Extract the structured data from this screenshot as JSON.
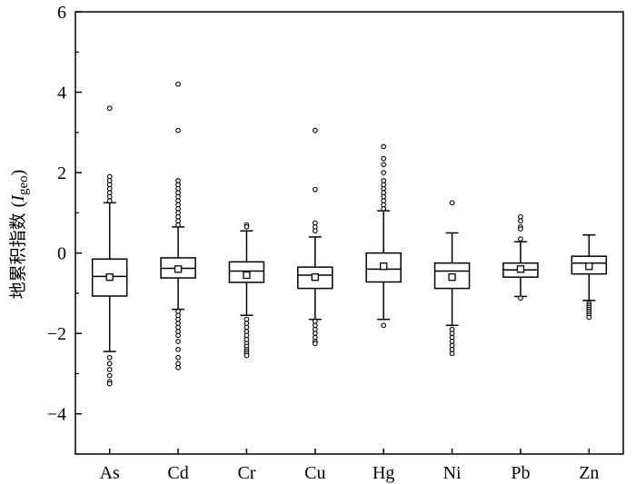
{
  "chart_data": {
    "type": "box",
    "title": "",
    "xlabel": "",
    "ylabel": {
      "text": "地累积指数",
      "symbol": "I",
      "subscript": "geo",
      "open_paren": "(",
      "close_paren": ")"
    },
    "ylim": [
      -5,
      6
    ],
    "yticks": [
      -4,
      -2,
      0,
      2,
      4,
      6
    ],
    "ytick_labels": [
      "−4",
      "−2",
      "0",
      "2",
      "4",
      "6"
    ],
    "grid": false,
    "categories": [
      "As",
      "Cd",
      "Cr",
      "Cu",
      "Hg",
      "Ni",
      "Pb",
      "Zn"
    ],
    "boxes": [
      {
        "name": "As",
        "whisker_low": -2.45,
        "q1": -1.07,
        "median": -0.58,
        "q3": -0.15,
        "whisker_high": 1.25,
        "mean": -0.6,
        "outliers": [
          3.6,
          1.9,
          1.8,
          1.7,
          1.6,
          1.5,
          1.4,
          1.3,
          -2.6,
          -2.75,
          -2.9,
          -3.05,
          -3.2,
          -3.25
        ]
      },
      {
        "name": "Cd",
        "whisker_low": -1.4,
        "q1": -0.62,
        "median": -0.38,
        "q3": -0.12,
        "whisker_high": 0.65,
        "mean": -0.4,
        "outliers": [
          4.2,
          3.05,
          1.8,
          1.7,
          1.6,
          1.5,
          1.4,
          1.3,
          1.2,
          1.1,
          1.0,
          0.9,
          0.8,
          0.7,
          -1.45,
          -1.55,
          -1.65,
          -1.75,
          -1.85,
          -1.95,
          -2.05,
          -2.2,
          -2.4,
          -2.6,
          -2.75,
          -2.85
        ]
      },
      {
        "name": "Cr",
        "whisker_low": -1.55,
        "q1": -0.73,
        "median": -0.45,
        "q3": -0.22,
        "whisker_high": 0.55,
        "mean": -0.55,
        "outliers": [
          0.7,
          0.65,
          -1.65,
          -1.75,
          -1.85,
          -1.95,
          -2.05,
          -2.15,
          -2.25,
          -2.32,
          -2.4,
          -2.45,
          -2.5,
          -2.55
        ]
      },
      {
        "name": "Cu",
        "whisker_low": -1.65,
        "q1": -0.88,
        "median": -0.55,
        "q3": -0.35,
        "whisker_high": 0.4,
        "mean": -0.6,
        "outliers": [
          3.05,
          1.58,
          0.75,
          0.65,
          0.55,
          -1.7,
          -1.8,
          -1.9,
          -2.0,
          -2.1,
          -2.2,
          -2.25
        ]
      },
      {
        "name": "Hg",
        "whisker_low": -1.65,
        "q1": -0.72,
        "median": -0.4,
        "q3": 0.0,
        "whisker_high": 1.05,
        "mean": -0.33,
        "outliers": [
          2.65,
          2.35,
          2.2,
          2.0,
          1.8,
          1.7,
          1.6,
          1.5,
          1.4,
          1.3,
          1.2,
          1.1,
          -1.8
        ]
      },
      {
        "name": "Ni",
        "whisker_low": -1.8,
        "q1": -0.88,
        "median": -0.45,
        "q3": -0.25,
        "whisker_high": 0.5,
        "mean": -0.6,
        "outliers": [
          1.25,
          -1.9,
          -2.0,
          -2.1,
          -2.2,
          -2.3,
          -2.4,
          -2.5
        ]
      },
      {
        "name": "Pb",
        "whisker_low": -1.08,
        "q1": -0.6,
        "median": -0.42,
        "q3": -0.25,
        "whisker_high": 0.28,
        "mean": -0.4,
        "outliers": [
          0.9,
          0.8,
          0.65,
          0.6,
          0.35,
          -1.12
        ]
      },
      {
        "name": "Zn",
        "whisker_low": -1.18,
        "q1": -0.52,
        "median": -0.25,
        "q3": -0.08,
        "whisker_high": 0.45,
        "mean": -0.33,
        "outliers": [
          -1.25,
          -1.3,
          -1.35,
          -1.4,
          -1.45,
          -1.5,
          -1.55,
          -1.6
        ]
      }
    ]
  }
}
